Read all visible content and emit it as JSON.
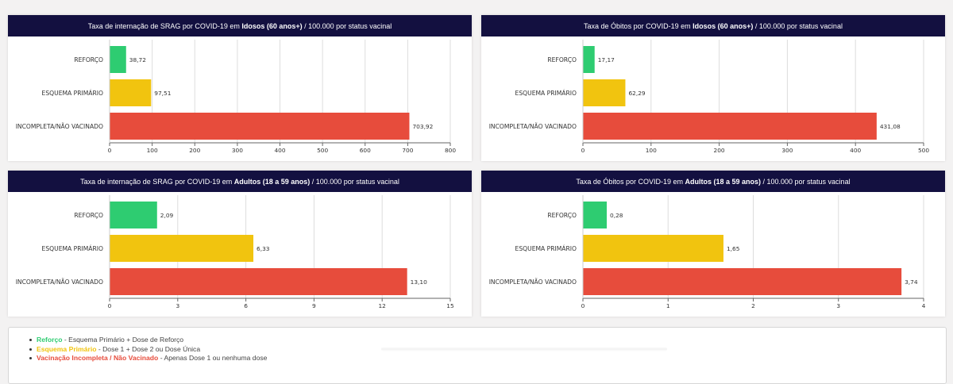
{
  "colors": {
    "header_bg": "#131040",
    "reforco": "#2ecc71",
    "esquema_primario": "#f1c40f",
    "incompleta": "#e74c3c",
    "grid": "#dddddd",
    "axis": "#666666"
  },
  "charts": [
    {
      "title_pre": "Taxa de internação de SRAG por COVID-19 em ",
      "title_bold": "Idosos (60 anos+)",
      "title_post": " / 100.000 por status vacinal"
    },
    {
      "title_pre": "Taxa de Óbitos por COVID-19 em ",
      "title_bold": "Idosos (60 anos+)",
      "title_post": " / 100.000 por status vacinal"
    },
    {
      "title_pre": "Taxa de internação de SRAG por COVID-19 em ",
      "title_bold": "Adultos (18 a 59 anos)",
      "title_post": " / 100.000 por status vacinal"
    },
    {
      "title_pre": "Taxa de Óbitos por COVID-19 em ",
      "title_bold": "Adultos (18 a 59 anos)",
      "title_post": " / 100.000 por status vacinal"
    }
  ],
  "chart_data": [
    {
      "type": "bar",
      "orientation": "horizontal",
      "title": "Taxa de internação de SRAG por COVID-19 em Idosos (60 anos+) / 100.000 por status vacinal",
      "categories": [
        "REFORÇO",
        "ESQUEMA PRIMÁRIO",
        "INCOMPLETA/NÃO VACINADO"
      ],
      "values": [
        38.72,
        97.51,
        703.92
      ],
      "value_labels": [
        "38,72",
        "97,51",
        "703,92"
      ],
      "xlim": [
        0,
        800
      ],
      "xticks": [
        0,
        100,
        200,
        300,
        400,
        500,
        600,
        700,
        800
      ],
      "xtick_labels": [
        "0",
        "100",
        "200",
        "300",
        "400",
        "500",
        "600",
        "700",
        "800"
      ],
      "xlabel": "",
      "ylabel": "",
      "grid": true
    },
    {
      "type": "bar",
      "orientation": "horizontal",
      "title": "Taxa de Óbitos por COVID-19 em Idosos (60 anos+) / 100.000 por status vacinal",
      "categories": [
        "REFORÇO",
        "ESQUEMA PRIMÁRIO",
        "INCOMPLETA/NÃO VACINADO"
      ],
      "values": [
        17.17,
        62.29,
        431.08
      ],
      "value_labels": [
        "17,17",
        "62,29",
        "431,08"
      ],
      "xlim": [
        0,
        500
      ],
      "xticks": [
        0,
        100,
        200,
        300,
        400,
        500
      ],
      "xtick_labels": [
        "0",
        "100",
        "200",
        "300",
        "400",
        "500"
      ],
      "xlabel": "",
      "ylabel": "",
      "grid": true
    },
    {
      "type": "bar",
      "orientation": "horizontal",
      "title": "Taxa de internação de SRAG por COVID-19 em Adultos (18 a 59 anos) / 100.000 por status vacinal",
      "categories": [
        "REFORÇO",
        "ESQUEMA PRIMÁRIO",
        "INCOMPLETA/NÃO VACINADO"
      ],
      "values": [
        2.09,
        6.33,
        13.1
      ],
      "value_labels": [
        "2,09",
        "6,33",
        "13,10"
      ],
      "xlim": [
        0,
        15
      ],
      "xticks": [
        0,
        3,
        6,
        9,
        12,
        15
      ],
      "xtick_labels": [
        "0",
        "3",
        "6",
        "9",
        "12",
        "15"
      ],
      "xlabel": "",
      "ylabel": "",
      "grid": true
    },
    {
      "type": "bar",
      "orientation": "horizontal",
      "title": "Taxa de Óbitos por COVID-19 em Adultos (18 a 59 anos) / 100.000 por status vacinal",
      "categories": [
        "REFORÇO",
        "ESQUEMA PRIMÁRIO",
        "INCOMPLETA/NÃO VACINADO"
      ],
      "values": [
        0.28,
        1.65,
        3.74
      ],
      "value_labels": [
        "0,28",
        "1,65",
        "3,74"
      ],
      "xlim": [
        0,
        4
      ],
      "xticks": [
        0,
        1,
        2,
        3,
        4
      ],
      "xtick_labels": [
        "0",
        "1",
        "2",
        "3",
        "4"
      ],
      "xlabel": "",
      "ylabel": "",
      "grid": true
    }
  ],
  "legend": {
    "items": [
      {
        "key": "Reforço",
        "desc": " - Esquema Primário + Dose de Reforço",
        "color": "#2ecc71"
      },
      {
        "key": "Esquema Primário",
        "desc": " - Dose 1 + Dose 2 ou Dose Única",
        "color": "#f1c40f"
      },
      {
        "key": "Vacinação Incompleta / Não Vacinado",
        "desc": " - Apenas Dose 1 ou nenhuma dose",
        "color": "#e74c3c"
      }
    ]
  }
}
